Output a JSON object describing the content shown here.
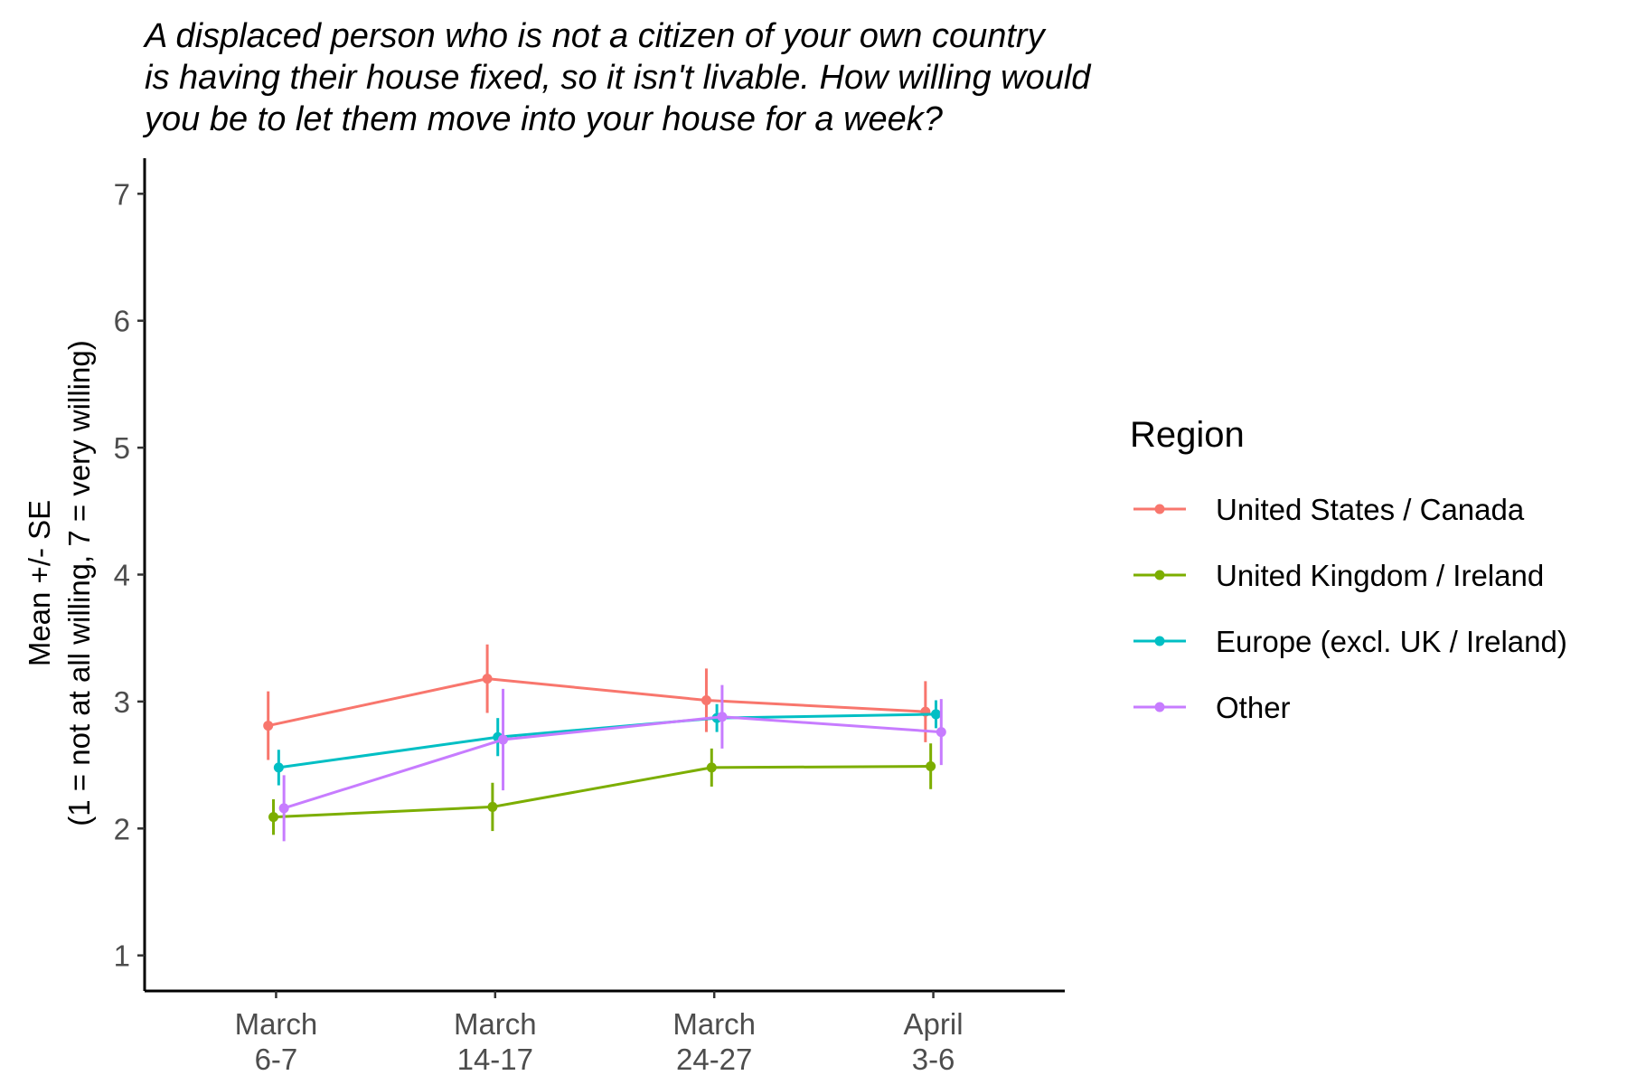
{
  "chart_data": {
    "type": "line",
    "title_lines": [
      "A displaced person who is not a citizen of your own country",
      "is having their house fixed, so it isn't livable. How willing would",
      "you be to let them move into your house for a week?"
    ],
    "ylabel_lines": [
      "Mean +/- SE",
      "(1 = not at all willing, 7 = very willing)"
    ],
    "xlabel": "",
    "categories": [
      [
        "March",
        "6-7"
      ],
      [
        "March",
        "14-17"
      ],
      [
        "March",
        "24-27"
      ],
      [
        "April",
        "3-6"
      ]
    ],
    "ylim": [
      0.72,
      7.28
    ],
    "yticks": [
      1,
      2,
      3,
      4,
      5,
      6,
      7
    ],
    "grid": false,
    "error_bars": "mean +/- SE",
    "legend": {
      "title": "Region",
      "position": "right"
    },
    "series": [
      {
        "name": "United States / Canada",
        "color": "#F8766D",
        "dodge": -0.036,
        "values": [
          2.81,
          3.18,
          3.01,
          2.92
        ],
        "se": [
          0.27,
          0.27,
          0.25,
          0.24
        ]
      },
      {
        "name": "United Kingdom / Ireland",
        "color": "#7CAE00",
        "dodge": -0.012,
        "values": [
          2.09,
          2.17,
          2.48,
          2.49
        ],
        "se": [
          0.14,
          0.19,
          0.15,
          0.18
        ]
      },
      {
        "name": "Europe (excl. UK / Ireland)",
        "color": "#00BFC4",
        "dodge": 0.012,
        "values": [
          2.48,
          2.72,
          2.87,
          2.9
        ],
        "se": [
          0.14,
          0.15,
          0.11,
          0.11
        ]
      },
      {
        "name": "Other",
        "color": "#C77CFF",
        "dodge": 0.036,
        "values": [
          2.16,
          2.7,
          2.88,
          2.76
        ],
        "se": [
          0.26,
          0.4,
          0.25,
          0.26
        ]
      }
    ]
  }
}
